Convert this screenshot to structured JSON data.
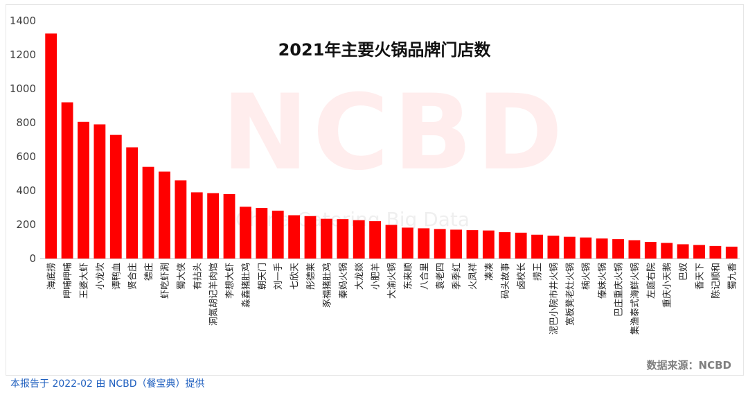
{
  "title": "2021年主要火锅品牌门店数",
  "watermark": "NCBD",
  "watermark_sub": "China Catering Big Data",
  "source_note": "数据来源：NCBD",
  "footer": "本报告于 2022-02 由 NCBD（餐宝典）提供",
  "colors": {
    "bar": "#ff0000",
    "axis": "#bfbfbf"
  },
  "chart_data": {
    "type": "bar",
    "title": "2021年主要火锅品牌门店数",
    "xlabel": "",
    "ylabel": "",
    "ylim": [
      0,
      1400
    ],
    "yticks": [
      0,
      200,
      400,
      600,
      800,
      1000,
      1200,
      1400
    ],
    "grid": false,
    "categories": [
      "海底捞",
      "呷哺呷哺",
      "王婆大虾",
      "小龙坎",
      "谭鸭血",
      "贤合庄",
      "德庄",
      "虾吃虾涮",
      "蜀大侠",
      "有拈头",
      "洞氮胡记羊肉馆",
      "李想大虾",
      "淼鑫猪肚鸡",
      "朝天门",
      "刘一手",
      "七欣天",
      "彤德莱",
      "豕福猪肚鸡",
      "秦妈火锅",
      "大龙燚",
      "小肥羊",
      "大渝火锅",
      "东来顺",
      "八合里",
      "袁老四",
      "季季红",
      "火凤祥",
      "凑凑",
      "码头故事",
      "卤校长",
      "捞王",
      "泥巴小院市井火锅",
      "宽板凳老灶火锅",
      "楠火锅",
      "傣妹火锅",
      "巴庄重庆火锅",
      "集渔泰式海鲜火锅",
      "左庭右院",
      "重庆小天鹅",
      "巴奴",
      "香天下",
      "陈记顺和",
      "蜀九香"
    ],
    "values": [
      1325,
      920,
      805,
      790,
      728,
      655,
      540,
      512,
      460,
      390,
      385,
      380,
      305,
      298,
      282,
      255,
      250,
      234,
      232,
      226,
      220,
      198,
      182,
      178,
      174,
      170,
      167,
      165,
      155,
      152,
      140,
      135,
      128,
      124,
      118,
      114,
      108,
      98,
      92,
      84,
      80,
      74,
      70
    ]
  }
}
